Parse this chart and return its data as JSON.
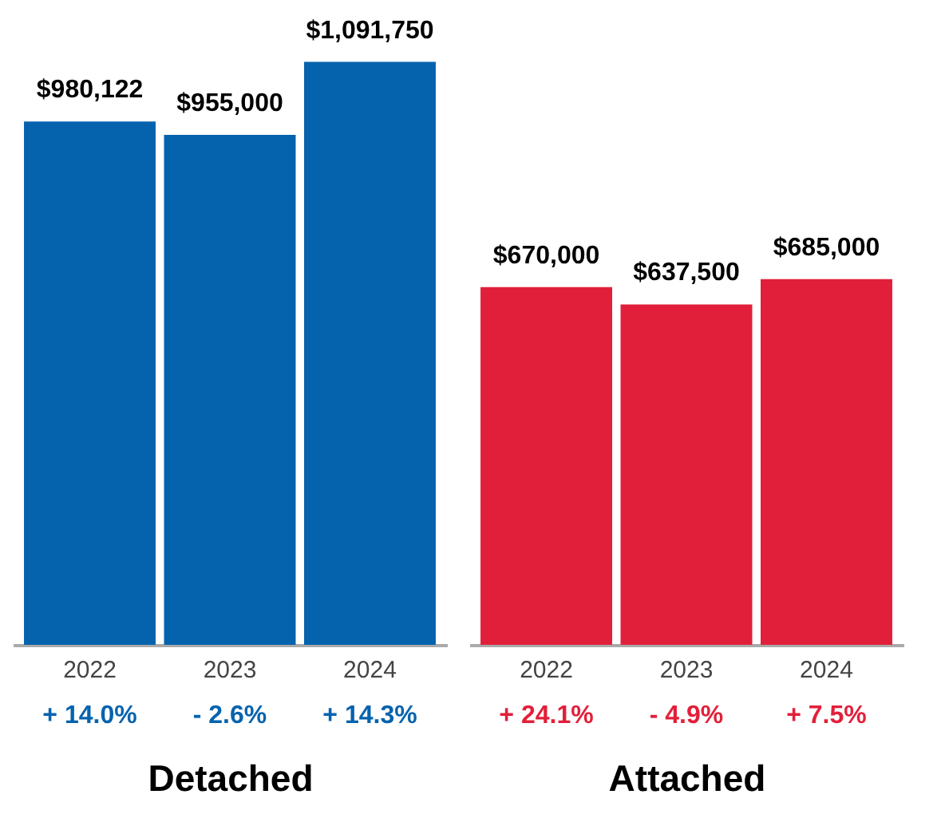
{
  "chart_data": [
    {
      "type": "bar",
      "categories": [
        "2022",
        "2023",
        "2024"
      ],
      "values": [
        980122,
        955000,
        1091750
      ],
      "color": "#0563ae",
      "value_labels": [
        "$980,122",
        "$955,000",
        "$1,091,750"
      ],
      "xlabel": "Detached",
      "annotations": [
        "+ 14.0%",
        "- 2.6%",
        "+ 14.3%"
      ],
      "tick_labels": "x"
    },
    {
      "type": "bar",
      "categories": [
        "2022",
        "2023",
        "2024"
      ],
      "values": [
        670000,
        637500,
        685000
      ],
      "color": "#e21f3a",
      "value_labels": [
        "$670,000",
        "$637,500",
        "$685,000"
      ],
      "xlabel": "Attached",
      "annotations": [
        "+ 24.1%",
        "- 4.9%",
        "+ 7.5%"
      ],
      "tick_labels": "x"
    }
  ]
}
